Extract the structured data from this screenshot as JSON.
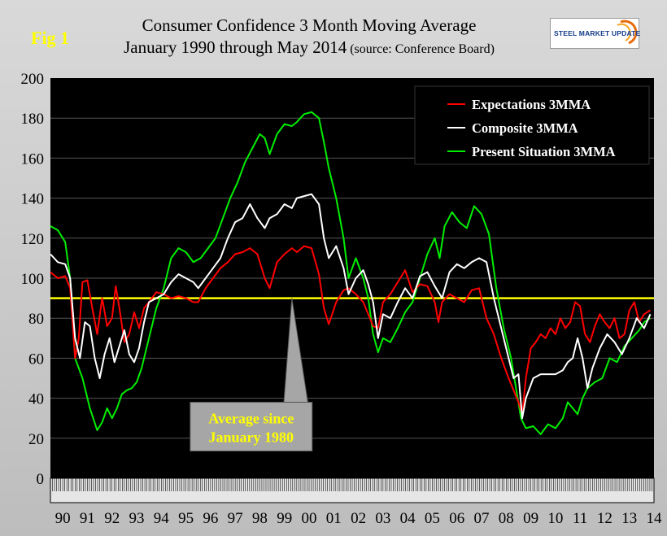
{
  "header": {
    "fig_label": "Fig 1",
    "title_line1": "Consumer Confidence 3 Month Moving Average",
    "title_line2": "January 1990 through May 2014",
    "source": "(source: Conference Board)",
    "logo_text": "STEEL MARKET UPDATE"
  },
  "colors": {
    "plot_bg": "#000000",
    "expectations": "#ff0000",
    "composite": "#ffffff",
    "present": "#00ee00",
    "average_line": "#ffff00",
    "callout_fill": "#a6a6a6",
    "callout_text": "#ffff00"
  },
  "chart_data": {
    "type": "line",
    "title": "Consumer Confidence 3 Month Moving Average",
    "ylim": [
      0,
      200
    ],
    "yticks": [
      0,
      20,
      40,
      60,
      80,
      100,
      120,
      140,
      160,
      180,
      200
    ],
    "xlim": [
      1990,
      2014.5
    ],
    "categories": [
      "90",
      "91",
      "92",
      "93",
      "94",
      "95",
      "96",
      "97",
      "98",
      "99",
      "00",
      "01",
      "02",
      "03",
      "04",
      "05",
      "06",
      "07",
      "08",
      "09",
      "10",
      "11",
      "12",
      "13",
      "14"
    ],
    "average_value": 90,
    "annotation": {
      "line1": "Average since",
      "line2": "January 1980",
      "year": 1999.8
    },
    "legend": {
      "expectations": "Expectations 3MMA",
      "composite": "Composite 3MMA",
      "present": "Present Situation 3MMA"
    },
    "series": [
      {
        "name": "Expectations 3MMA",
        "key": "expectations",
        "x": [
          1990,
          1990.3,
          1990.6,
          1990.8,
          1991.0,
          1991.15,
          1991.3,
          1991.5,
          1991.7,
          1991.9,
          1992.1,
          1992.3,
          1992.5,
          1992.65,
          1992.8,
          1993.0,
          1993.2,
          1993.4,
          1993.6,
          1993.8,
          1994.0,
          1994.3,
          1994.6,
          1994.9,
          1995.2,
          1995.5,
          1995.8,
          1996.0,
          1996.3,
          1996.6,
          1996.9,
          1997.2,
          1997.5,
          1997.8,
          1998.1,
          1998.4,
          1998.7,
          1998.9,
          1999.2,
          1999.5,
          1999.8,
          2000.0,
          2000.3,
          2000.6,
          2000.9,
          2001.1,
          2001.3,
          2001.6,
          2001.9,
          2002.1,
          2002.4,
          2002.7,
          2002.9,
          2003.1,
          2003.3,
          2003.5,
          2003.8,
          2004.1,
          2004.4,
          2004.7,
          2005.0,
          2005.3,
          2005.6,
          2005.75,
          2005.9,
          2006.2,
          2006.5,
          2006.8,
          2007.1,
          2007.4,
          2007.7,
          2008.0,
          2008.3,
          2008.6,
          2008.8,
          2009.0,
          2009.15,
          2009.3,
          2009.5,
          2009.7,
          2009.9,
          2010.1,
          2010.3,
          2010.5,
          2010.7,
          2010.9,
          2011.1,
          2011.3,
          2011.5,
          2011.7,
          2011.9,
          2012.1,
          2012.3,
          2012.5,
          2012.7,
          2012.9,
          2013.1,
          2013.3,
          2013.5,
          2013.7,
          2013.9,
          2014.1,
          2014.35
        ],
        "values": [
          103,
          100,
          101,
          95,
          60,
          70,
          98,
          99,
          85,
          72,
          90,
          76,
          80,
          96,
          85,
          68,
          72,
          83,
          75,
          85,
          88,
          93,
          92,
          90,
          91,
          90,
          88,
          88,
          95,
          100,
          105,
          108,
          112,
          113,
          115,
          112,
          100,
          95,
          108,
          112,
          115,
          113,
          116,
          115,
          102,
          85,
          77,
          88,
          94,
          95,
          92,
          88,
          82,
          76,
          75,
          88,
          92,
          98,
          104,
          93,
          97,
          96,
          88,
          78,
          88,
          92,
          90,
          88,
          94,
          95,
          80,
          72,
          60,
          50,
          44,
          38,
          32,
          50,
          65,
          68,
          72,
          70,
          75,
          72,
          80,
          75,
          78,
          88,
          86,
          72,
          68,
          76,
          82,
          78,
          75,
          80,
          70,
          72,
          84,
          88,
          78,
          82,
          84
        ]
      },
      {
        "name": "Composite 3MMA",
        "key": "composite",
        "x": [
          1990,
          1990.3,
          1990.6,
          1990.8,
          1991.0,
          1991.2,
          1991.4,
          1991.6,
          1991.8,
          1992.0,
          1992.2,
          1992.4,
          1992.6,
          1992.8,
          1993.0,
          1993.2,
          1993.4,
          1993.6,
          1993.8,
          1994.0,
          1994.3,
          1994.6,
          1994.9,
          1995.2,
          1995.5,
          1995.8,
          1996.0,
          1996.3,
          1996.6,
          1996.9,
          1997.2,
          1997.5,
          1997.8,
          1998.1,
          1998.4,
          1998.7,
          1998.9,
          1999.2,
          1999.5,
          1999.8,
          2000.0,
          2000.3,
          2000.6,
          2000.9,
          2001.1,
          2001.3,
          2001.6,
          2001.9,
          2002.1,
          2002.4,
          2002.7,
          2002.9,
          2003.1,
          2003.3,
          2003.5,
          2003.8,
          2004.1,
          2004.4,
          2004.7,
          2005.0,
          2005.3,
          2005.6,
          2005.9,
          2006.2,
          2006.5,
          2006.8,
          2007.1,
          2007.4,
          2007.7,
          2008.0,
          2008.3,
          2008.6,
          2008.8,
          2009.0,
          2009.15,
          2009.3,
          2009.6,
          2009.9,
          2010.2,
          2010.5,
          2010.8,
          2011.0,
          2011.2,
          2011.4,
          2011.6,
          2011.8,
          2012.0,
          2012.3,
          2012.6,
          2012.9,
          2013.2,
          2013.5,
          2013.8,
          2014.1,
          2014.35
        ],
        "values": [
          112,
          108,
          107,
          100,
          70,
          60,
          78,
          76,
          60,
          50,
          62,
          70,
          58,
          66,
          74,
          62,
          58,
          65,
          78,
          88,
          90,
          92,
          98,
          102,
          100,
          98,
          95,
          100,
          105,
          110,
          120,
          128,
          130,
          137,
          130,
          125,
          130,
          132,
          137,
          135,
          140,
          141,
          142,
          137,
          120,
          110,
          116,
          105,
          92,
          100,
          104,
          97,
          88,
          70,
          82,
          80,
          88,
          95,
          90,
          101,
          103,
          96,
          90,
          103,
          107,
          105,
          108,
          110,
          108,
          90,
          75,
          60,
          50,
          52,
          30,
          40,
          50,
          52,
          52,
          52,
          54,
          58,
          60,
          70,
          60,
          45,
          55,
          65,
          72,
          68,
          62,
          70,
          80,
          75,
          82
        ]
      },
      {
        "name": "Present Situation 3MMA",
        "key": "present",
        "x": [
          1990,
          1990.3,
          1990.6,
          1990.8,
          1991.0,
          1991.3,
          1991.6,
          1991.9,
          1992.1,
          1992.3,
          1992.5,
          1992.7,
          1992.9,
          1993.1,
          1993.3,
          1993.5,
          1993.7,
          1994.0,
          1994.3,
          1994.6,
          1994.9,
          1995.2,
          1995.5,
          1995.8,
          1996.1,
          1996.4,
          1996.7,
          1997.0,
          1997.3,
          1997.6,
          1997.9,
          1998.2,
          1998.5,
          1998.7,
          1998.9,
          1999.2,
          1999.5,
          1999.8,
          2000.0,
          2000.3,
          2000.6,
          2000.9,
          2001.1,
          2001.3,
          2001.6,
          2001.9,
          2002.1,
          2002.4,
          2002.7,
          2002.9,
          2003.1,
          2003.3,
          2003.5,
          2003.8,
          2004.1,
          2004.4,
          2004.7,
          2005.0,
          2005.3,
          2005.6,
          2005.8,
          2006.0,
          2006.3,
          2006.6,
          2006.9,
          2007.2,
          2007.5,
          2007.8,
          2008.1,
          2008.4,
          2008.7,
          2008.9,
          2009.1,
          2009.3,
          2009.6,
          2009.9,
          2010.2,
          2010.5,
          2010.8,
          2011.0,
          2011.2,
          2011.4,
          2011.6,
          2011.8,
          2012.1,
          2012.4,
          2012.7,
          2013.0,
          2013.3,
          2013.6,
          2013.9,
          2014.1,
          2014.35
        ],
        "values": [
          126,
          124,
          118,
          100,
          60,
          50,
          35,
          24,
          28,
          35,
          30,
          35,
          42,
          44,
          45,
          48,
          55,
          70,
          85,
          95,
          110,
          115,
          113,
          108,
          110,
          115,
          120,
          130,
          140,
          148,
          158,
          165,
          172,
          170,
          162,
          172,
          177,
          176,
          178,
          182,
          183,
          180,
          168,
          155,
          140,
          120,
          100,
          110,
          100,
          90,
          72,
          63,
          70,
          68,
          75,
          83,
          88,
          100,
          112,
          120,
          110,
          126,
          133,
          128,
          125,
          136,
          132,
          122,
          95,
          75,
          60,
          45,
          30,
          25,
          26,
          22,
          27,
          25,
          30,
          38,
          35,
          32,
          40,
          45,
          48,
          50,
          60,
          58,
          66,
          70,
          74,
          78,
          80
        ]
      }
    ]
  }
}
